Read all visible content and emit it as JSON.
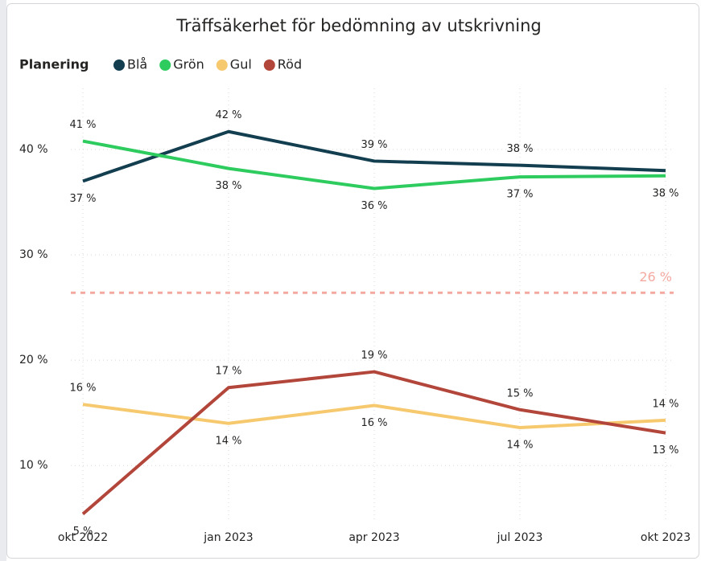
{
  "chart_data": {
    "type": "line",
    "title": "Träffsäkerhet för bedömning av utskrivning",
    "legend_title": "Planering",
    "categories": [
      "okt 2022",
      "jan 2023",
      "apr 2023",
      "jul 2023",
      "okt 2023"
    ],
    "series": [
      {
        "name": "Blå",
        "color": "#123e4f",
        "values": [
          37.0,
          41.7,
          38.9,
          38.5,
          38.0
        ],
        "value_labels": [
          "37 %",
          "42 %",
          "39 %",
          "38 %",
          null
        ]
      },
      {
        "name": "Grön",
        "color": "#2ecc5f",
        "values": [
          40.8,
          38.2,
          36.3,
          37.4,
          37.5
        ],
        "value_labels": [
          "41 %",
          "38 %",
          "36 %",
          "37 %",
          "38 %"
        ]
      },
      {
        "name": "Gul",
        "color": "#f7c96e",
        "values": [
          15.8,
          14.0,
          15.7,
          13.6,
          14.3
        ],
        "value_labels": [
          "16 %",
          "14 %",
          "16 %",
          "14 %",
          "14 %"
        ]
      },
      {
        "name": "Röd",
        "color": "#b3463b",
        "values": [
          5.4,
          17.4,
          18.9,
          15.3,
          13.1
        ],
        "value_labels": [
          "5 %",
          "17 %",
          "19 %",
          "15 %",
          "13 %"
        ]
      }
    ],
    "reference_line": {
      "value": 26.4,
      "label": "26 %",
      "color": "#f4a9a0"
    },
    "ylim": [
      4.6,
      45.8
    ],
    "yticks": [
      {
        "value": 10,
        "label": "10 %"
      },
      {
        "value": 20,
        "label": "20 %"
      },
      {
        "value": 30,
        "label": "30 %"
      },
      {
        "value": 40,
        "label": "40 %"
      }
    ],
    "grid": true,
    "legend_position": "top-left"
  }
}
